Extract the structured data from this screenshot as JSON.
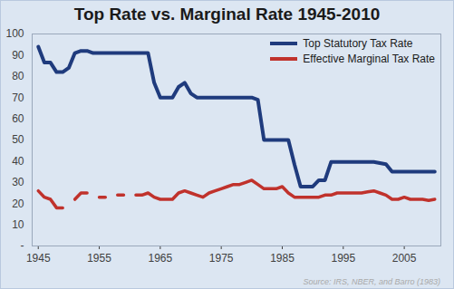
{
  "chart_data": {
    "type": "line",
    "title": "Top Rate vs. Marginal Rate 1945-2010",
    "caption": "Source: IRS, NBER, and Barro (1983)",
    "x": [
      1945,
      1946,
      1947,
      1948,
      1949,
      1950,
      1951,
      1952,
      1953,
      1954,
      1955,
      1956,
      1957,
      1958,
      1959,
      1960,
      1961,
      1962,
      1963,
      1964,
      1965,
      1966,
      1967,
      1968,
      1969,
      1970,
      1971,
      1972,
      1973,
      1974,
      1975,
      1976,
      1977,
      1978,
      1979,
      1980,
      1981,
      1982,
      1983,
      1984,
      1985,
      1986,
      1987,
      1988,
      1989,
      1990,
      1991,
      1992,
      1993,
      1994,
      1995,
      1996,
      1997,
      1998,
      1999,
      2000,
      2001,
      2002,
      2003,
      2004,
      2005,
      2006,
      2007,
      2008,
      2009,
      2010
    ],
    "series": [
      {
        "name": "Top Statutory Tax Rate",
        "color": "#1f3b7d",
        "line_style": "solid",
        "values": [
          94,
          86.5,
          86.5,
          82,
          82,
          84,
          91,
          92,
          92,
          91,
          91,
          91,
          91,
          91,
          91,
          91,
          91,
          91,
          91,
          77,
          70,
          70,
          70,
          75,
          77,
          72,
          70,
          70,
          70,
          70,
          70,
          70,
          70,
          70,
          70,
          70,
          69,
          50,
          50,
          50,
          50,
          50,
          38.5,
          28,
          28,
          28,
          31,
          31,
          39.6,
          39.6,
          39.6,
          39.6,
          39.6,
          39.6,
          39.6,
          39.6,
          39.1,
          38.6,
          35,
          35,
          35,
          35,
          35,
          35,
          35,
          35
        ]
      },
      {
        "name": "Effective Marginal Tax Rate",
        "color": "#c0322c",
        "line_style": "solid",
        "values": [
          26,
          23,
          22,
          18,
          18,
          null,
          22,
          25,
          25,
          null,
          23,
          23,
          null,
          24,
          24,
          null,
          24,
          24,
          25,
          23,
          22,
          22,
          22,
          25,
          26,
          25,
          24,
          23,
          25,
          26,
          27,
          28,
          29,
          29,
          30,
          31,
          29,
          27,
          27,
          27,
          28,
          25,
          23,
          23,
          23,
          23,
          23,
          24,
          24,
          25,
          25,
          25,
          25,
          25,
          25.5,
          26,
          25,
          24,
          22,
          22,
          23,
          22,
          22,
          22,
          21.5,
          22
        ]
      }
    ],
    "xlim": [
      1944,
      2011
    ],
    "xticks": [
      1945,
      1955,
      1965,
      1975,
      1985,
      1995,
      2005
    ],
    "ylim": [
      0,
      100
    ],
    "yticks": [
      {
        "value": 0,
        "label": "-"
      },
      10,
      20,
      30,
      40,
      50,
      60,
      70,
      80,
      90,
      100
    ],
    "grid": false,
    "legend": "top-right"
  }
}
